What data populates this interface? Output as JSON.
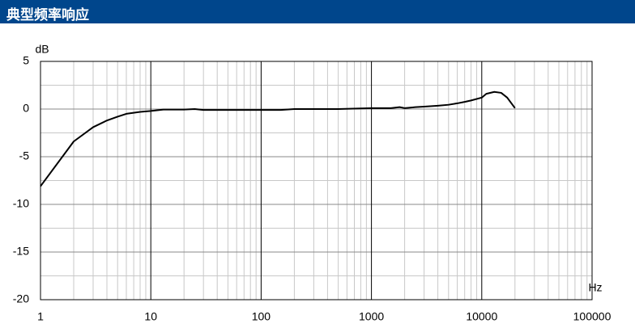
{
  "chart_data": {
    "type": "line",
    "title": "典型频率响应",
    "y_label": "dB",
    "x_label": "Hz",
    "xscale": "log",
    "grid": true,
    "xlim": [
      1,
      100000
    ],
    "xticks": [
      1,
      10,
      100,
      1000,
      10000,
      100000
    ],
    "ylim": [
      -20,
      5
    ],
    "yticks": [
      5,
      0,
      -5,
      -10,
      -15,
      -20
    ],
    "x": [
      1,
      2,
      3,
      4,
      5,
      6,
      8,
      10,
      13,
      20,
      25,
      30,
      100,
      150,
      200,
      500,
      1000,
      1500,
      1800,
      2000,
      2500,
      3000,
      4000,
      5000,
      6000,
      7000,
      8000,
      10000,
      11000,
      13000,
      15000,
      17000,
      20000
    ],
    "series": [
      {
        "color": "#000000",
        "values": [
          -8.1,
          -3.4,
          -1.9,
          -1.2,
          -0.8,
          -0.5,
          -0.3,
          -0.2,
          -0.05,
          -0.05,
          0,
          -0.1,
          -0.1,
          -0.1,
          0,
          0,
          0.1,
          0.1,
          0.2,
          0.1,
          0.2,
          0.25,
          0.35,
          0.45,
          0.6,
          0.75,
          0.9,
          1.2,
          1.6,
          1.8,
          1.7,
          1.2,
          0.1
        ]
      }
    ]
  }
}
